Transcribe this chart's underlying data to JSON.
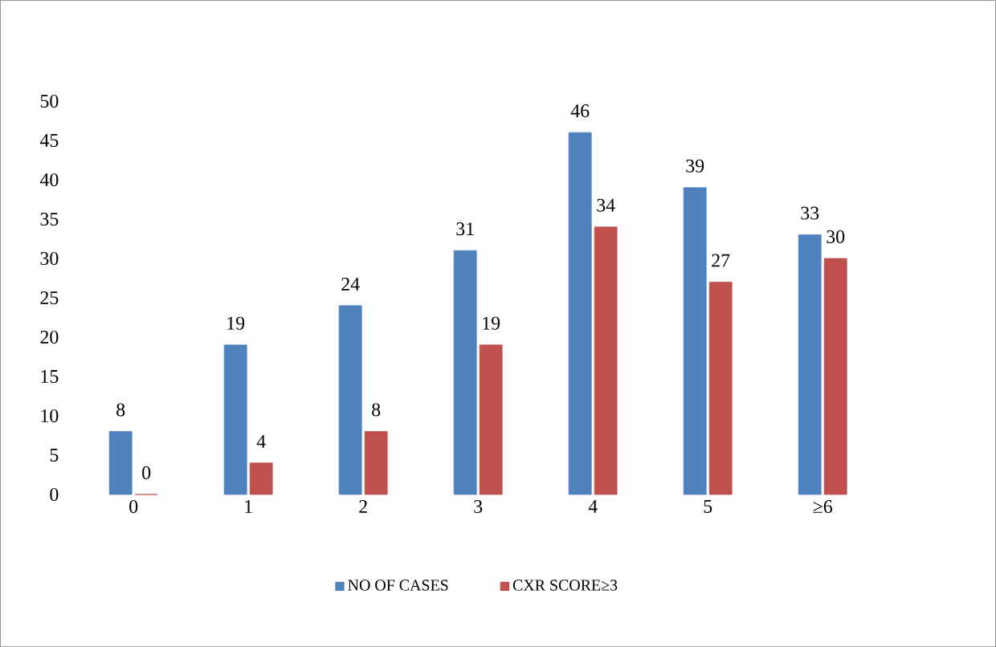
{
  "chart_data": {
    "type": "bar",
    "categories": [
      "0",
      "1",
      "2",
      "3",
      "4",
      "5",
      "≥6"
    ],
    "series": [
      {
        "name": "NO OF CASES",
        "color": "#4f81bd",
        "values": [
          8,
          19,
          24,
          31,
          46,
          39,
          33
        ]
      },
      {
        "name": "CXR SCORE≥3",
        "color": "#c0504d",
        "values": [
          0,
          4,
          8,
          19,
          34,
          27,
          30
        ]
      }
    ],
    "ylim": [
      0,
      50
    ],
    "yticks": [
      0,
      5,
      10,
      15,
      20,
      25,
      30,
      35,
      40,
      45,
      50
    ],
    "grid": false,
    "legend": "bottom",
    "data_labels": true
  }
}
